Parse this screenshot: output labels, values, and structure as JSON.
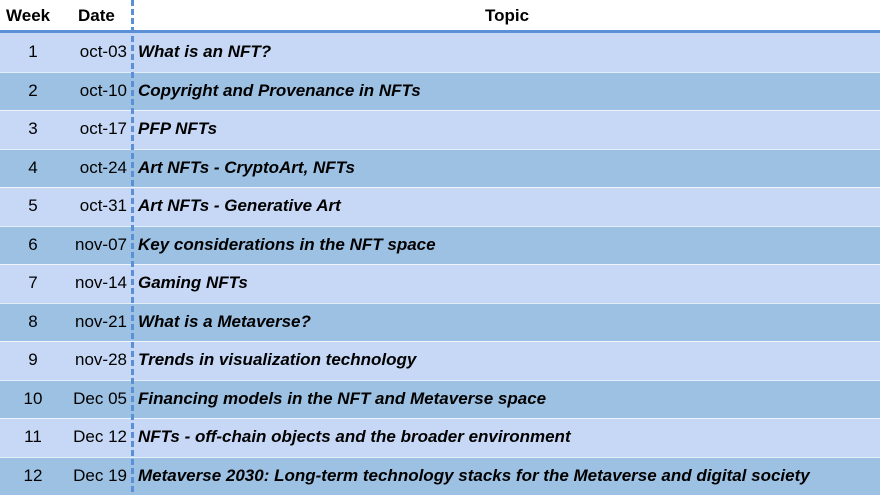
{
  "header": {
    "week": "Week",
    "date": "Date",
    "topic": "Topic"
  },
  "rows": [
    {
      "week": "1",
      "date": "oct-03",
      "topic": "What is an NFT?"
    },
    {
      "week": "2",
      "date": "oct-10",
      "topic": "Copyright and Provenance in NFTs"
    },
    {
      "week": "3",
      "date": "oct-17",
      "topic": "PFP NFTs"
    },
    {
      "week": "4",
      "date": "oct-24",
      "topic": "Art NFTs - CryptoArt, NFTs"
    },
    {
      "week": "5",
      "date": "oct-31",
      "topic": "Art NFTs - Generative Art"
    },
    {
      "week": "6",
      "date": "nov-07",
      "topic": "Key considerations in the NFT space"
    },
    {
      "week": "7",
      "date": "nov-14",
      "topic": "Gaming NFTs"
    },
    {
      "week": "8",
      "date": "nov-21",
      "topic": "What is a Metaverse?"
    },
    {
      "week": "9",
      "date": "nov-28",
      "topic": "Trends in visualization technology"
    },
    {
      "week": "10",
      "date": "Dec 05",
      "topic": "Financing models in the NFT and Metaverse space"
    },
    {
      "week": "11",
      "date": "Dec 12",
      "topic": "NFTs - off-chain objects and the broader environment"
    },
    {
      "week": "12",
      "date": "Dec 19",
      "topic": "Metaverse 2030: Long-term technology stacks for the Metaverse and digital society"
    }
  ],
  "colors": {
    "row_light": "#c6d8f5",
    "row_dark": "#9cc1e3",
    "divider": "#5b8fd6"
  }
}
